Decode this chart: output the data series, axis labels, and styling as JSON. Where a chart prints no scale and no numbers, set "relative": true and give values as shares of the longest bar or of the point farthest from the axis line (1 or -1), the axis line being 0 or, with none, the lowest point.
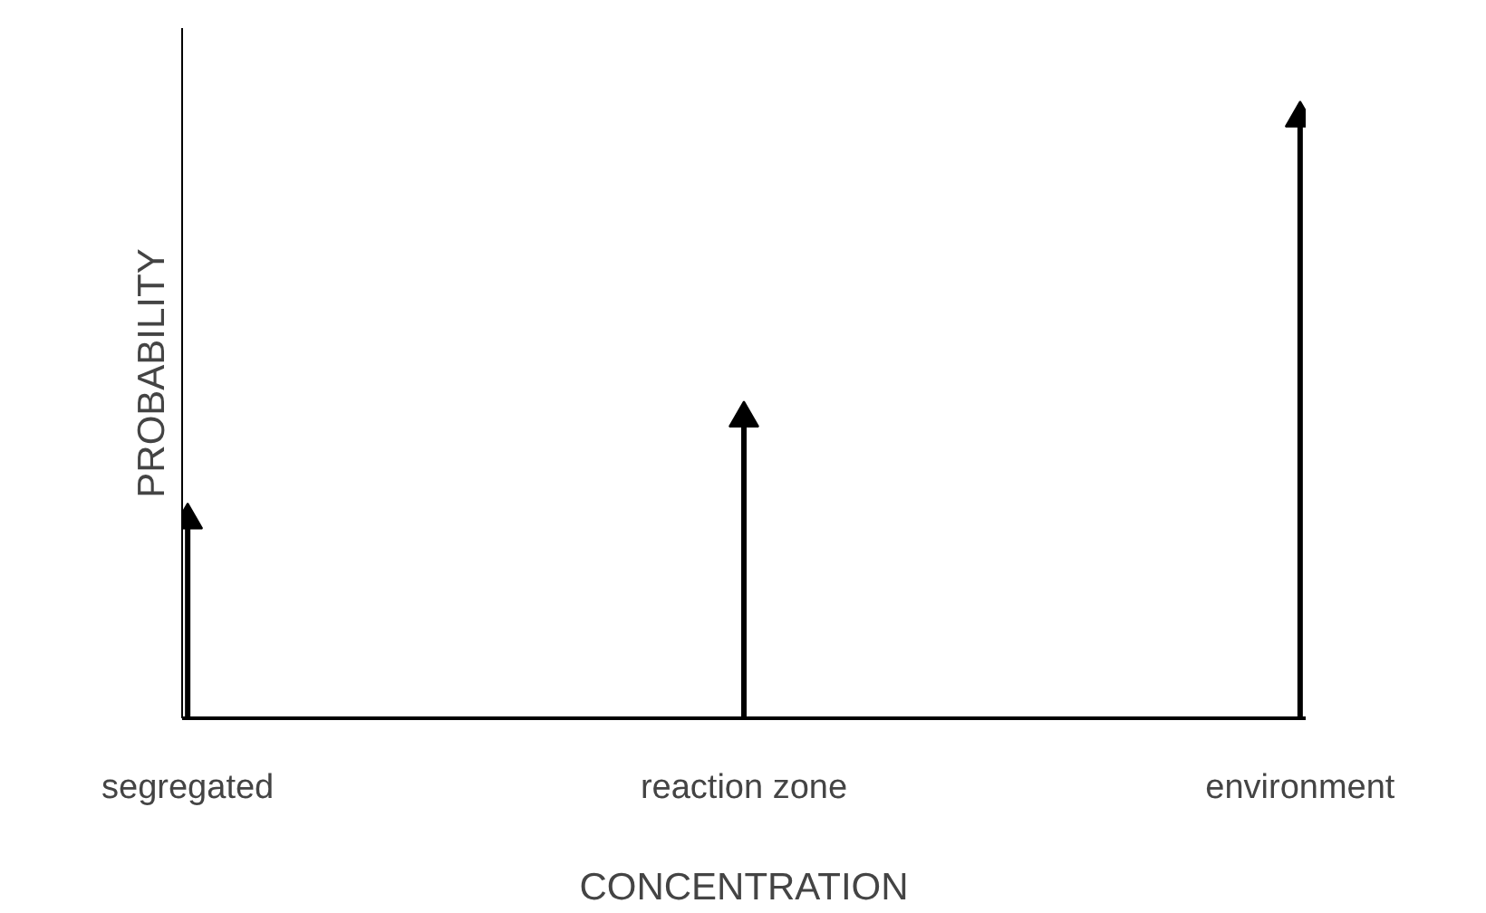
{
  "chart_data": {
    "type": "lollipop",
    "relative": true,
    "xlabel": "CONCENTRATION",
    "ylabel": "PROBABILITY",
    "categories": [
      "segregated",
      "reaction zone",
      "environment"
    ],
    "series": [
      {
        "color": "#000000",
        "values": [
          0.33,
          0.5,
          1
        ]
      }
    ],
    "marker": "triangle"
  }
}
